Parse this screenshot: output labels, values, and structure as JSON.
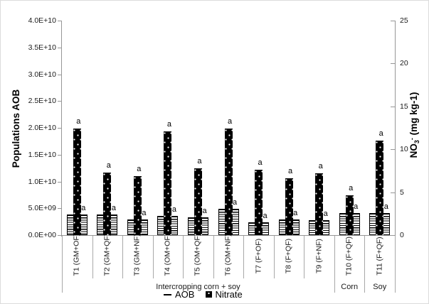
{
  "colors": {
    "bar": "#000000",
    "axis_line": "#969696",
    "separator": "#a8a8a8",
    "text": "#000000"
  },
  "chart_data": {
    "type": "bar",
    "title": "",
    "categories": [
      "T1 (GM+OF)",
      "T2 (GM+QF)",
      "T3 (GM+NF)",
      "T4 (OM+OF)",
      "T5 (OM+QF)",
      "T6 (OM+NF)",
      "T7 (F+OF)",
      "T8 (F+QF)",
      "T9 (F+NF)",
      "T10 (F+QF)",
      "T11 (F+QF)"
    ],
    "series": [
      {
        "name": "AOB",
        "axis": "left",
        "pattern": "horizontal-stripes",
        "values": [
          3800000000.0,
          3800000000.0,
          2900000000.0,
          3600000000.0,
          3300000000.0,
          4900000000.0,
          2400000000.0,
          2900000000.0,
          2800000000.0,
          4100000000.0,
          4100000000.0
        ],
        "bar_labels": [
          "a",
          "a",
          "a",
          "a",
          "a",
          "a",
          "a",
          "a",
          "a",
          "a",
          "a"
        ]
      },
      {
        "name": "Nitrate",
        "axis": "right",
        "pattern": "black-with-white-dots",
        "values": [
          12.4,
          7.3,
          6.9,
          12.1,
          7.8,
          12.4,
          7.6,
          6.6,
          7.2,
          4.6,
          11.0
        ],
        "bar_labels": [
          "a",
          "a",
          "a",
          "a",
          "a",
          "a",
          "a",
          "a",
          "a",
          "a",
          "a"
        ]
      }
    ],
    "left_axis": {
      "label": "Populations AOB",
      "min": 0,
      "max": 40000000000.0,
      "ticks": [
        "0.0E+00",
        "5.0E+09",
        "1.0E+10",
        "1.5E+10",
        "2.0E+10",
        "2.5E+10",
        "3.0E+10",
        "3.5E+10",
        "4.0E+10"
      ]
    },
    "right_axis": {
      "label_prefix": "NO",
      "label_sub": "3",
      "label_sup": "-",
      "label_suffix": " (mg kg-1)",
      "min": 0,
      "max": 25,
      "ticks": [
        "0",
        "5",
        "10",
        "15",
        "20",
        "25"
      ]
    },
    "groups": [
      {
        "label": "Intercropping corn + soy",
        "span": [
          0,
          8
        ]
      },
      {
        "label": "Corn",
        "span": [
          9,
          9
        ]
      },
      {
        "label": "Soy",
        "span": [
          10,
          10
        ]
      }
    ],
    "legend": [
      {
        "marker": "dash",
        "label": "AOB"
      },
      {
        "marker": "dotted-square",
        "label": "Nitrate"
      }
    ],
    "grid": false,
    "legend_position": "bottom-center"
  }
}
